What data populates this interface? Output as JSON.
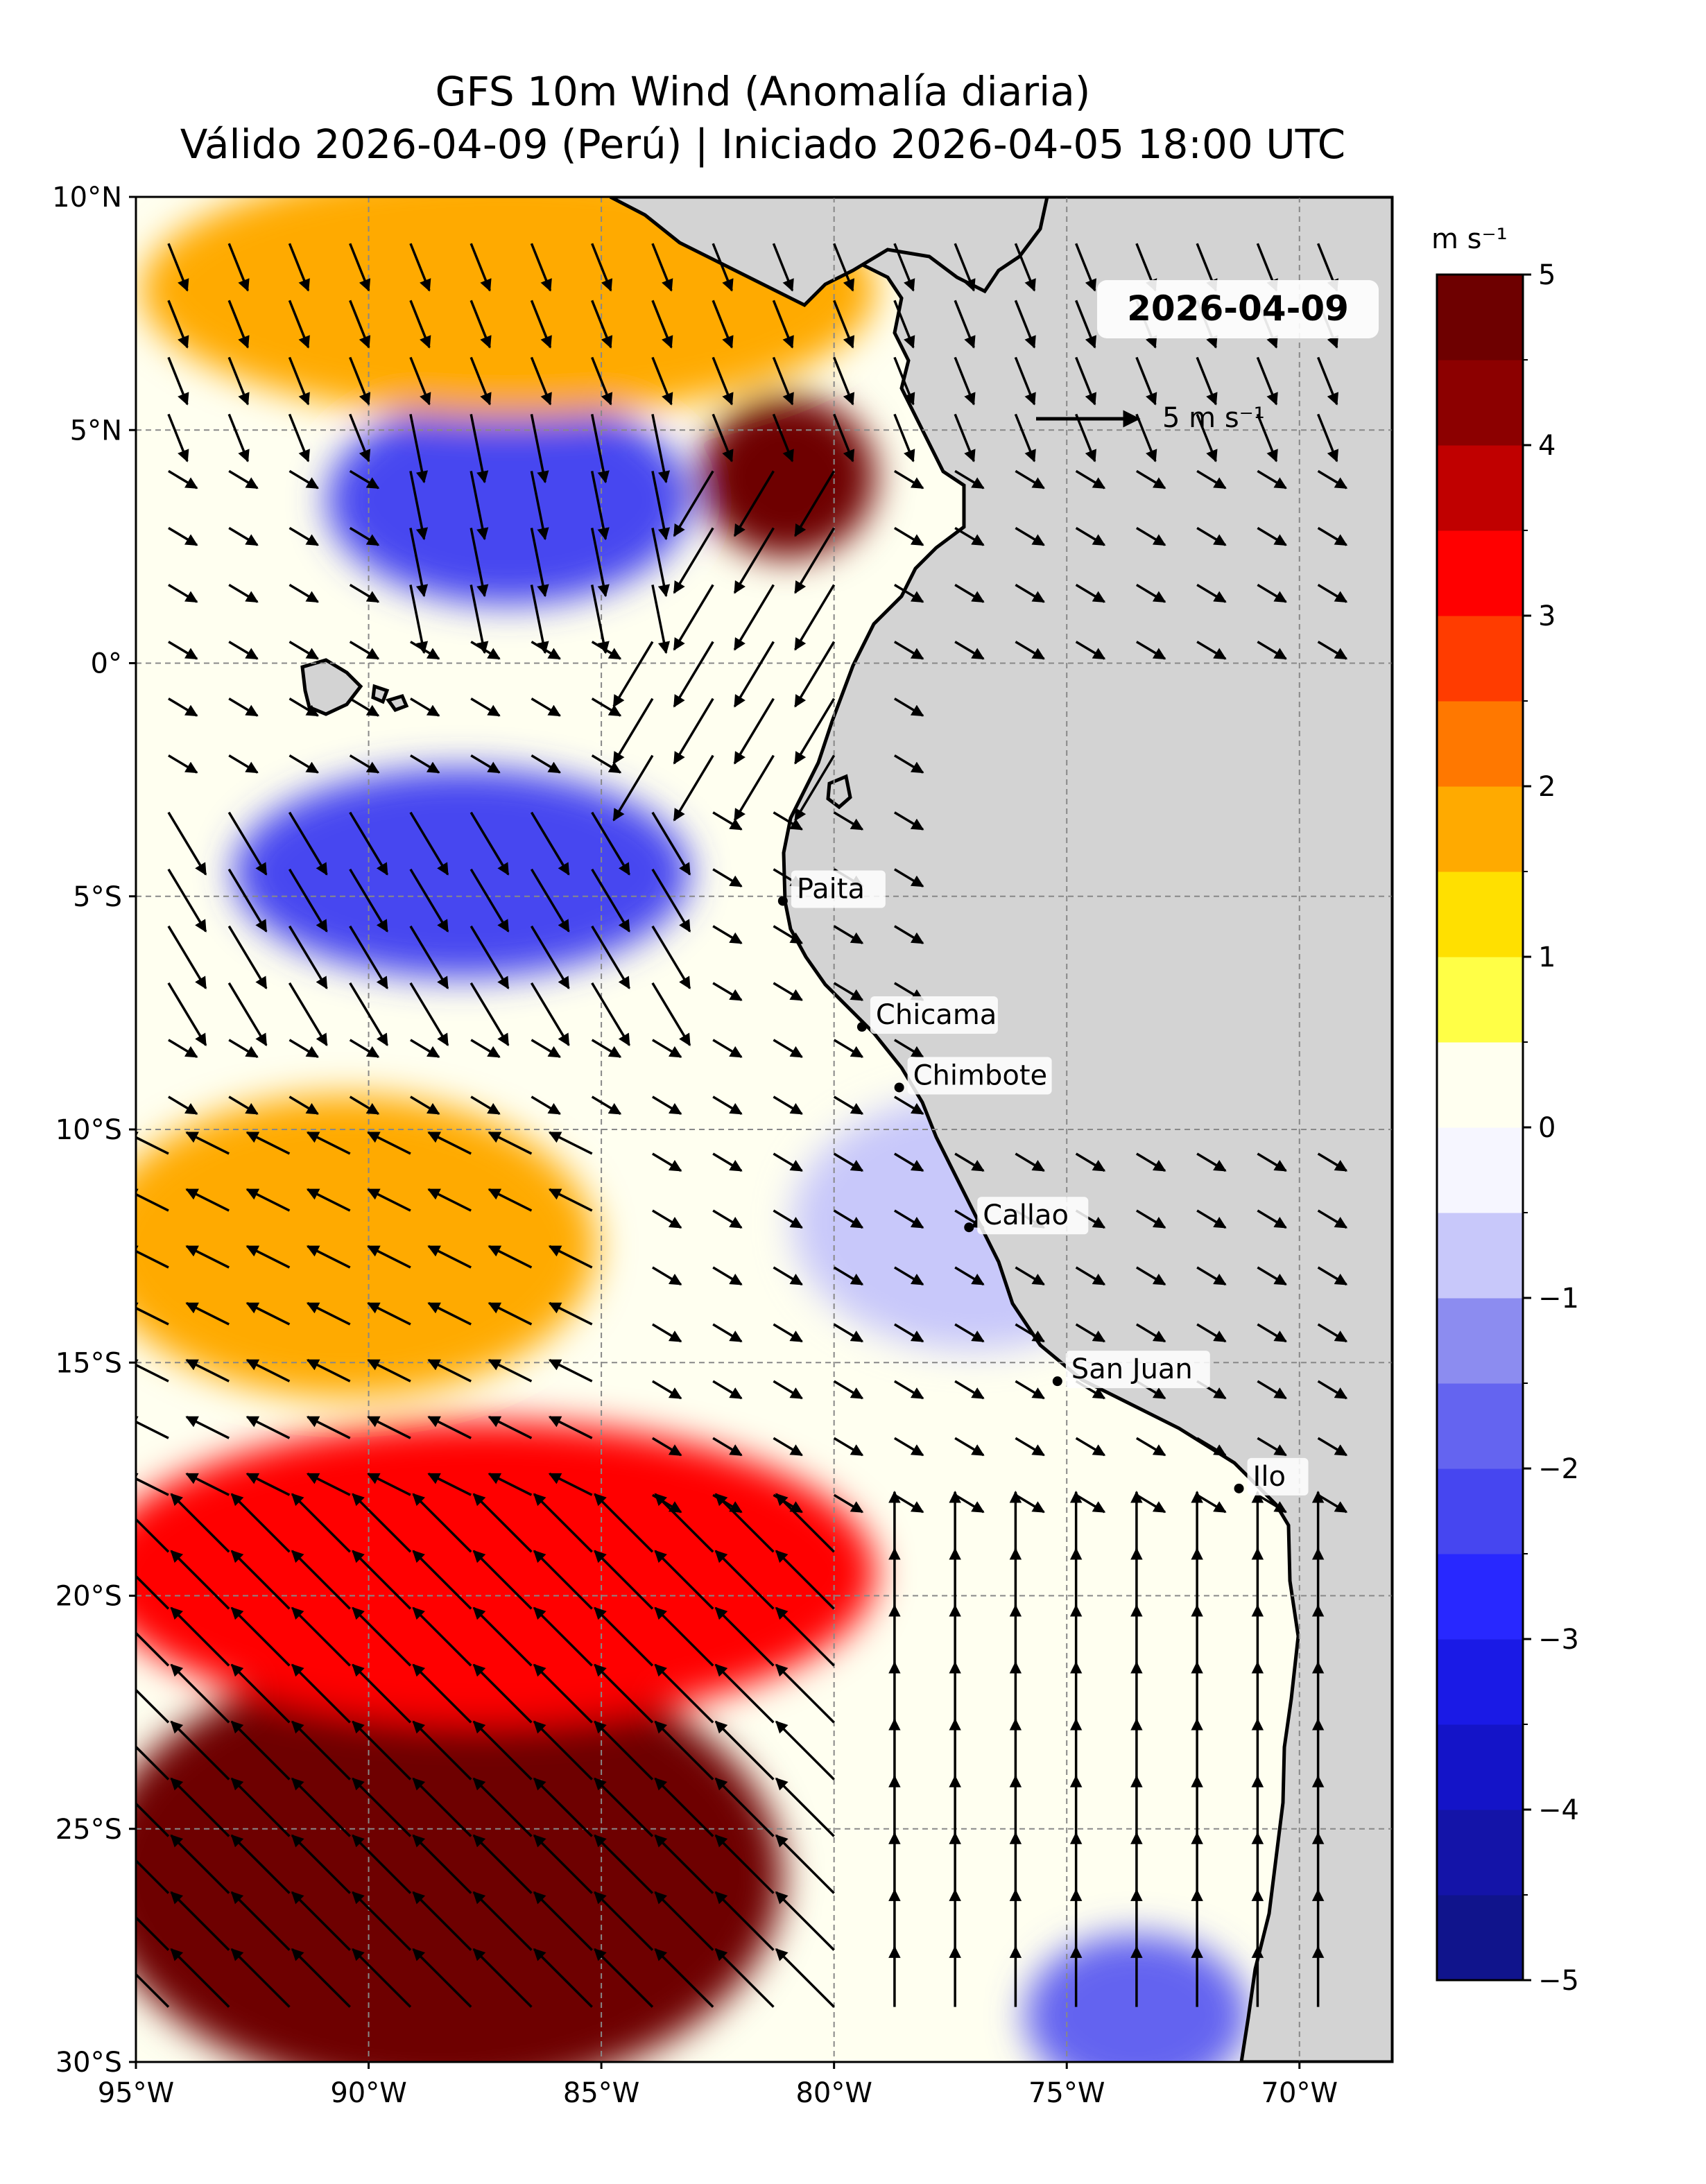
{
  "title_line1": "GFS 10m Wind (Anomalía diaria)",
  "title_line2": "Válido 2026-04-09 (Perú) | Iniciado 2026-04-05 18:00 UTC",
  "date_badge": "2026-04-09",
  "reference_arrow": {
    "label": "5 m s⁻¹",
    "magnitude": 5
  },
  "map": {
    "extent": {
      "lon_min": -95,
      "lon_max": -68,
      "lat_min": -30,
      "lat_max": 10
    },
    "lat_ticks": [
      {
        "lat": 10,
        "label": "10°N"
      },
      {
        "lat": 5,
        "label": "5°N"
      },
      {
        "lat": 0,
        "label": "0°"
      },
      {
        "lat": -5,
        "label": "5°S"
      },
      {
        "lat": -10,
        "label": "10°S"
      },
      {
        "lat": -15,
        "label": "15°S"
      },
      {
        "lat": -20,
        "label": "20°S"
      },
      {
        "lat": -25,
        "label": "25°S"
      },
      {
        "lat": -30,
        "label": "30°S"
      }
    ],
    "lon_ticks": [
      {
        "lon": -95,
        "label": "95°W"
      },
      {
        "lon": -90,
        "label": "90°W"
      },
      {
        "lon": -85,
        "label": "85°W"
      },
      {
        "lon": -80,
        "label": "80°W"
      },
      {
        "lon": -75,
        "label": "75°W"
      },
      {
        "lon": -70,
        "label": "70°W"
      }
    ],
    "land_color": "#d3d3d3",
    "cities": [
      {
        "name": "Paita",
        "lon": -81.1,
        "lat": -5.1
      },
      {
        "name": "Chicama",
        "lon": -79.4,
        "lat": -7.8
      },
      {
        "name": "Chimbote",
        "lon": -78.6,
        "lat": -9.1
      },
      {
        "name": "Callao",
        "lon": -77.1,
        "lat": -12.1
      },
      {
        "name": "San Juan",
        "lon": -75.2,
        "lat": -15.4
      },
      {
        "name": "Ilo",
        "lon": -71.3,
        "lat": -17.7
      }
    ]
  },
  "colorbar": {
    "unit_label": "m s⁻¹",
    "min": -5,
    "max": 5,
    "step": 0.5,
    "tick_values": [
      5,
      4,
      3,
      2,
      1,
      0,
      -1,
      -2,
      -3,
      -4,
      -5
    ],
    "tick_labels": [
      "5",
      "4",
      "3",
      "2",
      "1",
      "0",
      "−1",
      "−2",
      "−3",
      "−4",
      "−5"
    ],
    "colors": [
      "#10148c",
      "#1414a8",
      "#1414c8",
      "#1a1ae6",
      "#2828ff",
      "#4646f0",
      "#6464f0",
      "#8c8cf0",
      "#c8c8fa",
      "#f6f6ff",
      "#fffff0",
      "#ffff46",
      "#ffe000",
      "#ffaa00",
      "#ff7800",
      "#ff3c00",
      "#ff0000",
      "#c00000",
      "#8c0000",
      "#6e0000"
    ]
  },
  "chart_data": {
    "type": "heatmap",
    "title": "GFS 10m Wind (Anomalía diaria)",
    "subtitle": "Válido 2026-04-09 (Perú) | Iniciado 2026-04-05 18:00 UTC",
    "field": "10 m wind speed anomaly",
    "unit": "m s⁻¹",
    "range": [
      -5,
      5
    ],
    "regions": [
      {
        "lon_range": [
          -95,
          -82
        ],
        "lat_range": [
          -30,
          -22
        ],
        "anomaly": 5
      },
      {
        "lon_range": [
          -95,
          -80
        ],
        "lat_range": [
          -22,
          -17
        ],
        "anomaly": 3
      },
      {
        "lon_range": [
          -95,
          -86
        ],
        "lat_range": [
          -15,
          -10
        ],
        "anomaly": 1.5
      },
      {
        "lon_range": [
          -90,
          -84
        ],
        "lat_range": [
          2,
          5
        ],
        "anomaly": -2.5
      },
      {
        "lon_range": [
          -92,
          -84
        ],
        "lat_range": [
          -6,
          -3
        ],
        "anomaly": -2.5
      },
      {
        "lon_range": [
          -82,
          -80
        ],
        "lat_range": [
          3,
          5
        ],
        "anomaly": 4.5
      },
      {
        "lon_range": [
          -94,
          -80
        ],
        "lat_range": [
          6,
          10
        ],
        "anomaly": 1.5
      },
      {
        "lon_range": [
          -80,
          -74
        ],
        "lat_range": [
          -14,
          -10
        ],
        "anomaly": -1
      },
      {
        "lon_range": [
          -75,
          -72
        ],
        "lat_range": [
          -30,
          -28
        ],
        "anomaly": -2
      }
    ]
  }
}
